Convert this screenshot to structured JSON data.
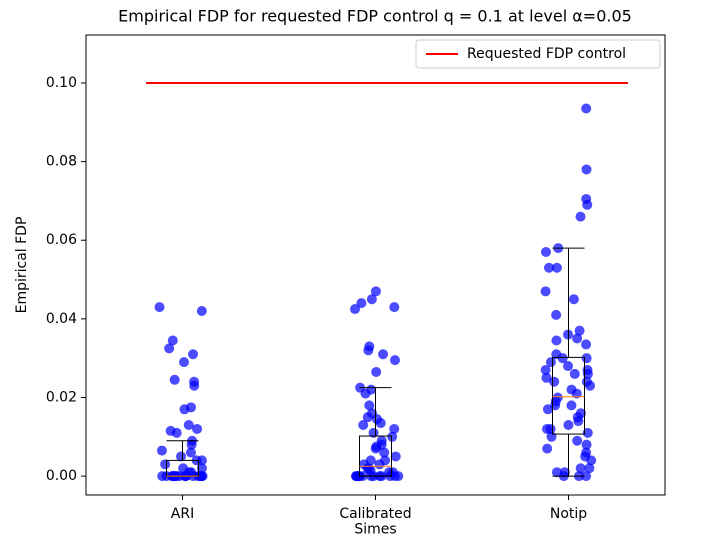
{
  "chart_data": {
    "type": "box-strip",
    "title": "Empirical FDP for requested FDP control q = 0.1 at level α=0.05",
    "y_label": "Empirical FDP",
    "categories": [
      "ARI",
      "Calibrated\nSimes",
      "Notip"
    ],
    "ylim": [
      -0.0048,
      0.1122
    ],
    "yticks": [
      {
        "value": 0,
        "label": "0.00"
      },
      {
        "value": 0.02,
        "label": "0.02"
      },
      {
        "value": 0.04,
        "label": "0.04"
      },
      {
        "value": 0.06,
        "label": "0.06"
      },
      {
        "value": 0.08,
        "label": "0.08"
      },
      {
        "value": 0.1,
        "label": "0.10"
      }
    ],
    "boxes": [
      {
        "whislo": 0,
        "q1": 0,
        "med": 0,
        "q3": 0.004,
        "whishi": 0.009
      },
      {
        "whislo": 0,
        "q1": 0,
        "med": 0.0025,
        "q3": 0.0102,
        "whishi": 0.0225
      },
      {
        "whislo": 0,
        "q1": 0.0107,
        "med": 0.0202,
        "q3": 0.0302,
        "whishi": 0.058
      }
    ],
    "box_color": "#000000",
    "median_color": "#ff7f0e",
    "points_color": "#0000ff",
    "points": [
      [
        0.043,
        0.042,
        0.0345,
        0.0325,
        0.031,
        0.029,
        0.0245,
        0.024,
        0.023,
        0.017,
        0.0175,
        0.013,
        0.012,
        0.0115,
        0.011,
        0.009,
        0.008,
        0.0065,
        0.006,
        0.005,
        0.004,
        0.004,
        0.003,
        0.002,
        0.002,
        0.001,
        0.001,
        0,
        0,
        0,
        0,
        0,
        0,
        0,
        0,
        0,
        0,
        0,
        0,
        0,
        0,
        0,
        0,
        0,
        0
      ],
      [
        0.047,
        0.045,
        0.044,
        0.043,
        0.0425,
        0.033,
        0.032,
        0.031,
        0.0295,
        0.0265,
        0.0225,
        0.022,
        0.021,
        0.018,
        0.016,
        0.015,
        0.0145,
        0.0135,
        0.013,
        0.012,
        0.011,
        0.01,
        0.009,
        0.008,
        0.0075,
        0.007,
        0.006,
        0.005,
        0.004,
        0.004,
        0.003,
        0.003,
        0.002,
        0.002,
        0.0015,
        0.001,
        0.001,
        0,
        0,
        0,
        0,
        0,
        0,
        0,
        0,
        0,
        0,
        0,
        0,
        0,
        0
      ],
      [
        0.0935,
        0.078,
        0.0705,
        0.069,
        0.066,
        0.058,
        0.057,
        0.053,
        0.053,
        0.047,
        0.045,
        0.041,
        0.037,
        0.036,
        0.035,
        0.0345,
        0.0335,
        0.031,
        0.03,
        0.03,
        0.029,
        0.028,
        0.027,
        0.027,
        0.026,
        0.026,
        0.025,
        0.024,
        0.024,
        0.023,
        0.022,
        0.021,
        0.02,
        0.019,
        0.018,
        0.018,
        0.017,
        0.016,
        0.015,
        0.014,
        0.013,
        0.012,
        0.012,
        0.011,
        0.01,
        0.009,
        0.008,
        0.007,
        0.006,
        0.005,
        0.004,
        0.002,
        0.002,
        0.001,
        0.001,
        0,
        0,
        0
      ]
    ],
    "hline": {
      "name": "Requested FDP control",
      "value": 0.1,
      "color": "#ff0000"
    },
    "legend": "upper right"
  }
}
